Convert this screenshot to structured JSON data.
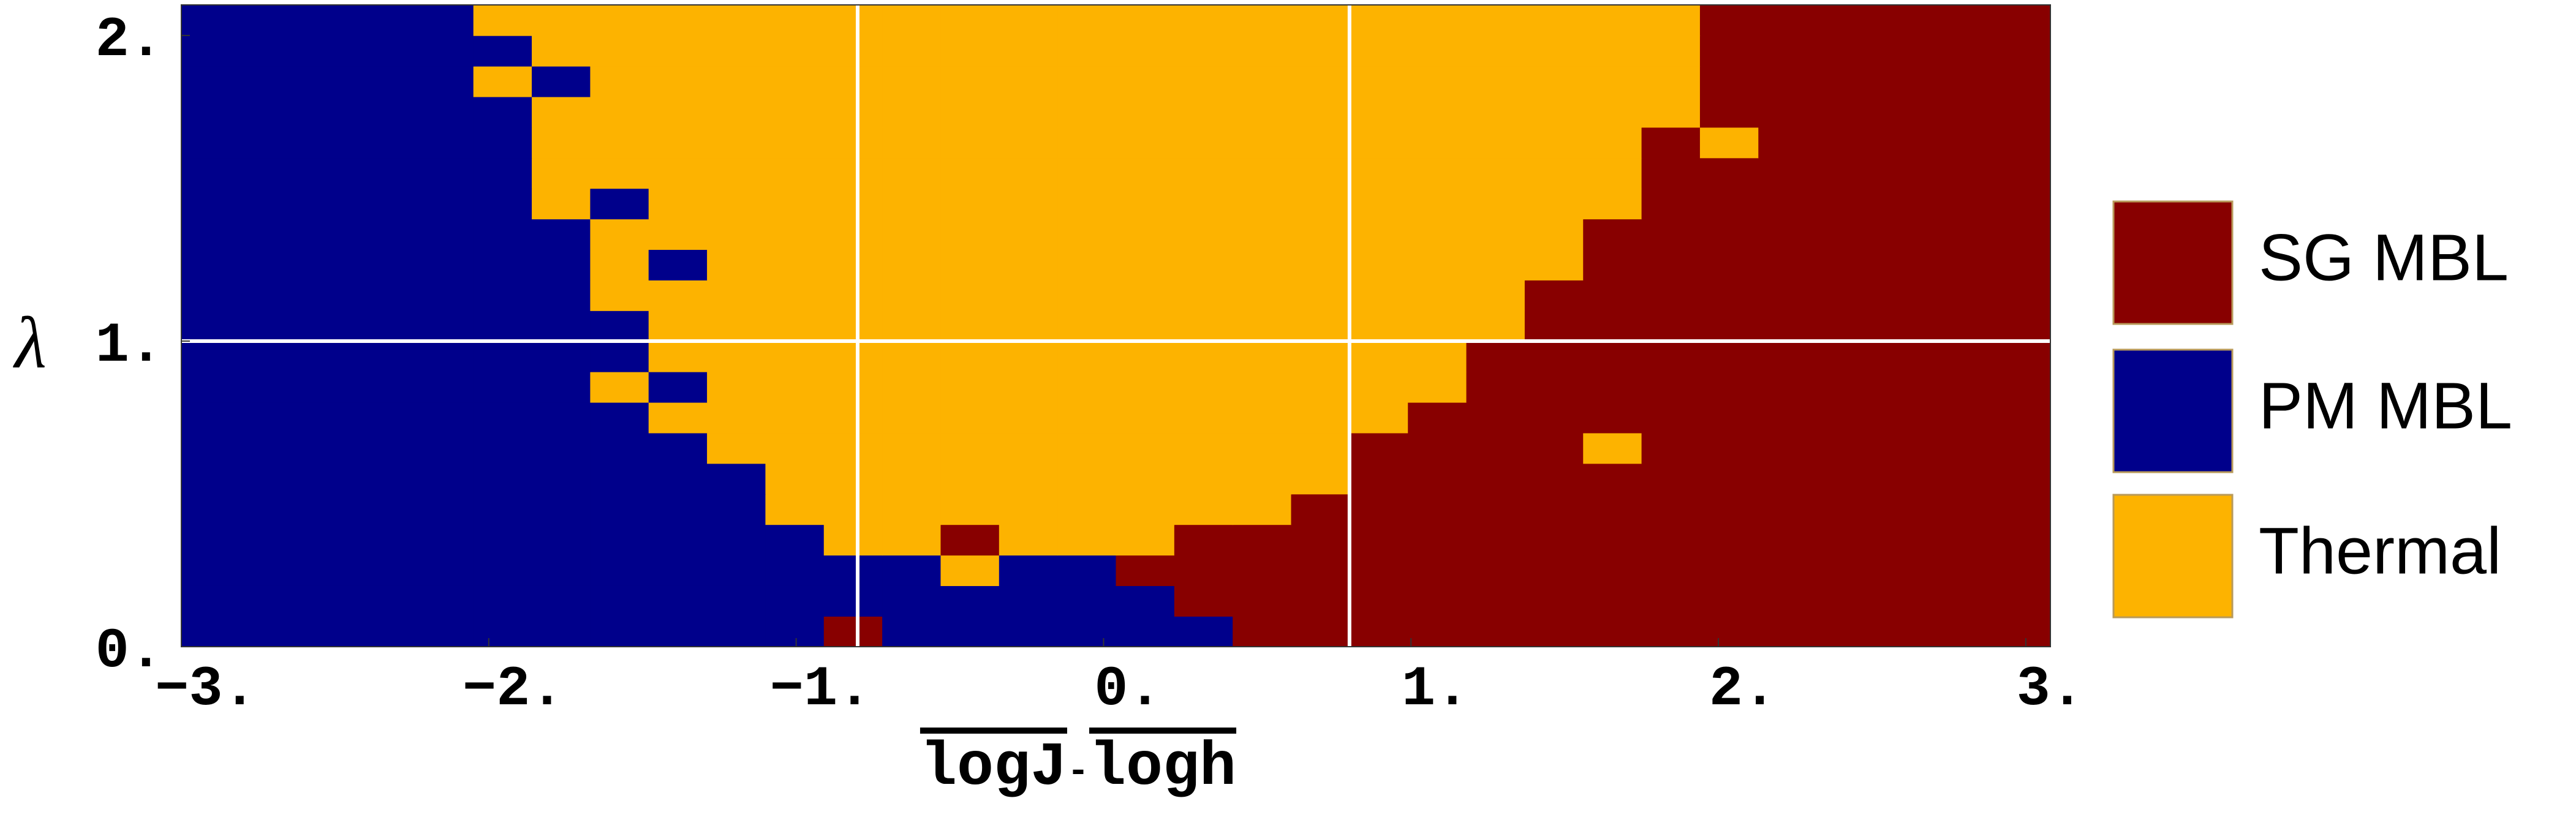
{
  "chart_data": {
    "type": "heatmap",
    "xlabel": [
      "logJ",
      "-",
      "logh"
    ],
    "ylabel": "λ",
    "xlim": [
      -3,
      3.08
    ],
    "ylim": [
      0,
      2.1
    ],
    "xticks": [
      {
        "value": -3,
        "label": "−3."
      },
      {
        "value": -2,
        "label": "−2."
      },
      {
        "value": -1,
        "label": "−1."
      },
      {
        "value": 0,
        "label": "0."
      },
      {
        "value": 1,
        "label": "1."
      },
      {
        "value": 2,
        "label": "2."
      },
      {
        "value": 3,
        "label": "3."
      }
    ],
    "yticks": [
      {
        "value": 0,
        "label": "0."
      },
      {
        "value": 1,
        "label": "1."
      },
      {
        "value": 2,
        "label": "2."
      }
    ],
    "vlines": [
      -0.8,
      0.8
    ],
    "hlines": [
      1
    ],
    "series": [
      {
        "name": "PM MBL",
        "color": "#00008b"
      },
      {
        "name": "Thermal",
        "color": "#fdb300"
      },
      {
        "name": "SG MBL",
        "color": "#880000"
      }
    ],
    "legend_order": [
      2,
      0,
      1
    ],
    "xbins": [
      -3,
      -2.81,
      -2.62,
      -2.43,
      -2.24,
      -2.05,
      -1.86,
      -1.67,
      -1.48,
      -1.29,
      -1.1,
      -0.91,
      -0.72,
      -0.53,
      -0.34,
      -0.15,
      0.04,
      0.23,
      0.42,
      0.61,
      0.8,
      0.99,
      1.18,
      1.37,
      1.56,
      1.75,
      1.94,
      2.13,
      2.32,
      2.51,
      2.7,
      2.89,
      3.08
    ],
    "ybins": [
      0,
      0.1,
      0.2,
      0.3,
      0.4,
      0.5,
      0.6,
      0.7,
      0.8,
      0.9,
      1,
      1.1,
      1.2,
      1.3,
      1.4,
      1.5,
      1.6,
      1.7,
      1.8,
      1.9,
      2,
      2.1
    ],
    "z": [
      [
        0,
        0,
        0,
        0,
        0,
        0,
        0,
        0,
        0,
        0,
        0,
        2,
        0,
        0,
        0,
        0,
        0,
        0,
        2,
        2,
        2,
        2,
        2,
        2,
        2,
        2,
        2,
        2,
        2,
        2,
        2,
        2
      ],
      [
        0,
        0,
        0,
        0,
        0,
        0,
        0,
        0,
        0,
        0,
        0,
        0,
        0,
        0,
        0,
        0,
        0,
        2,
        2,
        2,
        2,
        2,
        2,
        2,
        2,
        2,
        2,
        2,
        2,
        2,
        2,
        2
      ],
      [
        0,
        0,
        0,
        0,
        0,
        0,
        0,
        0,
        0,
        0,
        0,
        0,
        0,
        1,
        0,
        0,
        2,
        2,
        2,
        2,
        2,
        2,
        2,
        2,
        2,
        2,
        2,
        2,
        2,
        2,
        2,
        2
      ],
      [
        0,
        0,
        0,
        0,
        0,
        0,
        0,
        0,
        0,
        0,
        0,
        1,
        1,
        2,
        1,
        1,
        1,
        2,
        2,
        2,
        2,
        2,
        2,
        2,
        2,
        2,
        2,
        2,
        2,
        2,
        2,
        2
      ],
      [
        0,
        0,
        0,
        0,
        0,
        0,
        0,
        0,
        0,
        0,
        1,
        1,
        1,
        1,
        1,
        1,
        1,
        1,
        1,
        2,
        2,
        2,
        2,
        2,
        2,
        2,
        2,
        2,
        2,
        2,
        2,
        2
      ],
      [
        0,
        0,
        0,
        0,
        0,
        0,
        0,
        0,
        0,
        0,
        1,
        1,
        1,
        1,
        1,
        1,
        1,
        1,
        1,
        1,
        2,
        2,
        2,
        2,
        2,
        2,
        2,
        2,
        2,
        2,
        2,
        2
      ],
      [
        0,
        0,
        0,
        0,
        0,
        0,
        0,
        0,
        0,
        1,
        1,
        1,
        1,
        1,
        1,
        1,
        1,
        1,
        1,
        1,
        2,
        2,
        2,
        2,
        1,
        2,
        2,
        2,
        2,
        2,
        2,
        2
      ],
      [
        0,
        0,
        0,
        0,
        0,
        0,
        0,
        0,
        1,
        1,
        1,
        1,
        1,
        1,
        1,
        1,
        1,
        1,
        1,
        1,
        1,
        2,
        2,
        2,
        2,
        2,
        2,
        2,
        2,
        2,
        2,
        2
      ],
      [
        0,
        0,
        0,
        0,
        0,
        0,
        0,
        1,
        0,
        1,
        1,
        1,
        1,
        1,
        1,
        1,
        1,
        1,
        1,
        1,
        1,
        1,
        2,
        2,
        2,
        2,
        2,
        2,
        2,
        2,
        2,
        2
      ],
      [
        0,
        0,
        0,
        0,
        0,
        0,
        0,
        0,
        1,
        1,
        1,
        1,
        1,
        1,
        1,
        1,
        1,
        1,
        1,
        1,
        1,
        1,
        2,
        2,
        2,
        2,
        2,
        2,
        2,
        2,
        2,
        2
      ],
      [
        0,
        0,
        0,
        0,
        0,
        0,
        0,
        0,
        1,
        1,
        1,
        1,
        1,
        1,
        1,
        1,
        1,
        1,
        1,
        1,
        1,
        1,
        1,
        2,
        2,
        2,
        2,
        2,
        2,
        2,
        2,
        2
      ],
      [
        0,
        0,
        0,
        0,
        0,
        0,
        0,
        1,
        1,
        1,
        1,
        1,
        1,
        1,
        1,
        1,
        1,
        1,
        1,
        1,
        1,
        1,
        1,
        2,
        2,
        2,
        2,
        2,
        2,
        2,
        2,
        2
      ],
      [
        0,
        0,
        0,
        0,
        0,
        0,
        0,
        1,
        0,
        1,
        1,
        1,
        1,
        1,
        1,
        1,
        1,
        1,
        1,
        1,
        1,
        1,
        1,
        1,
        2,
        2,
        2,
        2,
        2,
        2,
        2,
        2
      ],
      [
        0,
        0,
        0,
        0,
        0,
        0,
        0,
        1,
        1,
        1,
        1,
        1,
        1,
        1,
        1,
        1,
        1,
        1,
        1,
        1,
        1,
        1,
        1,
        1,
        2,
        2,
        2,
        2,
        2,
        2,
        2,
        2
      ],
      [
        0,
        0,
        0,
        0,
        0,
        0,
        1,
        0,
        1,
        1,
        1,
        1,
        1,
        1,
        1,
        1,
        1,
        1,
        1,
        1,
        1,
        1,
        1,
        1,
        1,
        2,
        2,
        2,
        2,
        2,
        2,
        2
      ],
      [
        0,
        0,
        0,
        0,
        0,
        0,
        1,
        1,
        1,
        1,
        1,
        1,
        1,
        1,
        1,
        1,
        1,
        1,
        1,
        1,
        1,
        1,
        1,
        1,
        1,
        2,
        2,
        2,
        2,
        2,
        2,
        2
      ],
      [
        0,
        0,
        0,
        0,
        0,
        0,
        1,
        1,
        1,
        1,
        1,
        1,
        1,
        1,
        1,
        1,
        1,
        1,
        1,
        1,
        1,
        1,
        1,
        1,
        1,
        2,
        1,
        2,
        2,
        2,
        2,
        2
      ],
      [
        0,
        0,
        0,
        0,
        0,
        0,
        1,
        1,
        1,
        1,
        1,
        1,
        1,
        1,
        1,
        1,
        1,
        1,
        1,
        1,
        1,
        1,
        1,
        1,
        1,
        1,
        2,
        2,
        2,
        2,
        2,
        2
      ],
      [
        0,
        0,
        0,
        0,
        0,
        1,
        0,
        1,
        1,
        1,
        1,
        1,
        1,
        1,
        1,
        1,
        1,
        1,
        1,
        1,
        1,
        1,
        1,
        1,
        1,
        1,
        2,
        2,
        2,
        2,
        2,
        2
      ],
      [
        0,
        0,
        0,
        0,
        0,
        0,
        1,
        1,
        1,
        1,
        1,
        1,
        1,
        1,
        1,
        1,
        1,
        1,
        1,
        1,
        1,
        1,
        1,
        1,
        1,
        1,
        2,
        2,
        2,
        2,
        2,
        2
      ],
      [
        0,
        0,
        0,
        0,
        0,
        1,
        1,
        1,
        1,
        1,
        1,
        1,
        1,
        1,
        1,
        1,
        1,
        1,
        1,
        1,
        1,
        1,
        1,
        1,
        1,
        1,
        2,
        2,
        2,
        2,
        2,
        2
      ]
    ]
  }
}
